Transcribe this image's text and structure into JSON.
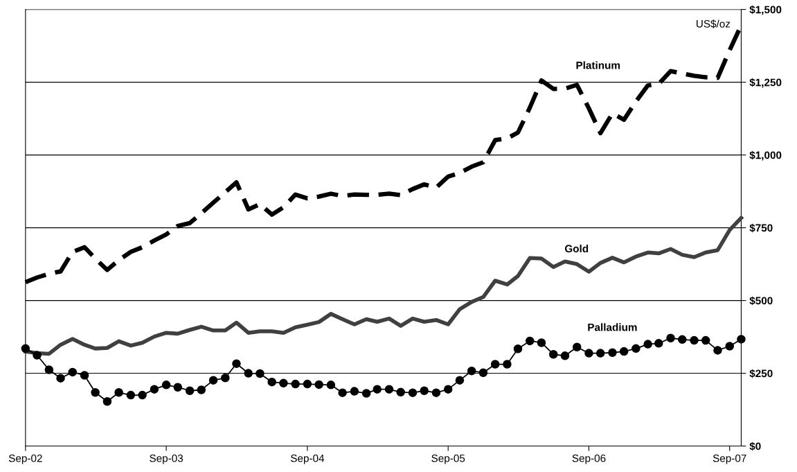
{
  "chart_data": {
    "type": "line",
    "ylabel": "US$/oz",
    "x": [
      "2002-09",
      "2002-10",
      "2002-11",
      "2002-12",
      "2003-01",
      "2003-02",
      "2003-03",
      "2003-04",
      "2003-05",
      "2003-06",
      "2003-07",
      "2003-08",
      "2003-09",
      "2003-10",
      "2003-11",
      "2003-12",
      "2004-01",
      "2004-02",
      "2004-03",
      "2004-04",
      "2004-05",
      "2004-06",
      "2004-07",
      "2004-08",
      "2004-09",
      "2004-10",
      "2004-11",
      "2004-12",
      "2005-01",
      "2005-02",
      "2005-03",
      "2005-04",
      "2005-05",
      "2005-06",
      "2005-07",
      "2005-08",
      "2005-09",
      "2005-10",
      "2005-11",
      "2005-12",
      "2006-01",
      "2006-02",
      "2006-03",
      "2006-04",
      "2006-05",
      "2006-06",
      "2006-07",
      "2006-08",
      "2006-09",
      "2006-10",
      "2006-11",
      "2006-12",
      "2007-01",
      "2007-02",
      "2007-03",
      "2007-04",
      "2007-05",
      "2007-06",
      "2007-07",
      "2007-08",
      "2007-09",
      "2007-10"
    ],
    "series": [
      {
        "name": "Platinum",
        "color": "#000000",
        "line_style": "dashed",
        "marker": "none",
        "values": [
          563,
          579,
          592,
          600,
          667,
          683,
          644,
          605,
          639,
          667,
          683,
          706,
          727,
          756,
          766,
          800,
          836,
          872,
          906,
          813,
          831,
          795,
          820,
          864,
          851,
          857,
          867,
          859,
          864,
          863,
          863,
          867,
          862,
          883,
          899,
          888,
          926,
          938,
          960,
          975,
          1051,
          1057,
          1077,
          1163,
          1256,
          1227,
          1228,
          1241,
          1160,
          1075,
          1143,
          1121,
          1184,
          1239,
          1244,
          1288,
          1280,
          1272,
          1267,
          1265,
          1360,
          1446
        ]
      },
      {
        "name": "Gold",
        "color": "#404040",
        "line_style": "solid",
        "marker": "none",
        "values": [
          325,
          319,
          317,
          348,
          368,
          348,
          335,
          337,
          360,
          345,
          355,
          376,
          389,
          386,
          399,
          410,
          397,
          397,
          424,
          389,
          394,
          394,
          389,
          408,
          417,
          426,
          454,
          436,
          418,
          436,
          427,
          438,
          413,
          438,
          427,
          433,
          418,
          470,
          495,
          512,
          568,
          555,
          584,
          646,
          644,
          615,
          634,
          625,
          599,
          629,
          647,
          631,
          651,
          665,
          662,
          677,
          657,
          649,
          665,
          673,
          742,
          784
        ]
      },
      {
        "name": "Palladium",
        "color": "#000000",
        "line_style": "solid",
        "marker": "circle",
        "values": [
          335,
          312,
          262,
          233,
          254,
          243,
          184,
          153,
          184,
          175,
          175,
          195,
          210,
          202,
          190,
          193,
          226,
          234,
          283,
          250,
          249,
          220,
          216,
          213,
          213,
          211,
          210,
          183,
          188,
          181,
          195,
          195,
          185,
          183,
          190,
          183,
          195,
          226,
          258,
          252,
          281,
          281,
          334,
          361,
          355,
          315,
          310,
          340,
          319,
          319,
          321,
          325,
          335,
          350,
          353,
          371,
          366,
          363,
          363,
          329,
          343,
          367
        ]
      }
    ],
    "xlim": [
      "2002-09",
      "2007-10"
    ],
    "xticks": [
      {
        "value": "2002-09",
        "label": "Sep-02"
      },
      {
        "value": "2003-09",
        "label": "Sep-03"
      },
      {
        "value": "2004-09",
        "label": "Sep-04"
      },
      {
        "value": "2005-09",
        "label": "Sep-05"
      },
      {
        "value": "2006-09",
        "label": "Sep-06"
      },
      {
        "value": "2007-09",
        "label": "Sep-07"
      }
    ],
    "ylim": [
      0,
      1500
    ],
    "yticks": [
      {
        "value": 0,
        "label": "$0"
      },
      {
        "value": 250,
        "label": "$250"
      },
      {
        "value": 500,
        "label": "$500"
      },
      {
        "value": 750,
        "label": "$750"
      },
      {
        "value": 1000,
        "label": "$1,000"
      },
      {
        "value": 1250,
        "label": "$1,250"
      },
      {
        "value": 1500,
        "label": "$1,500"
      }
    ],
    "grid": "y",
    "legend": false
  }
}
